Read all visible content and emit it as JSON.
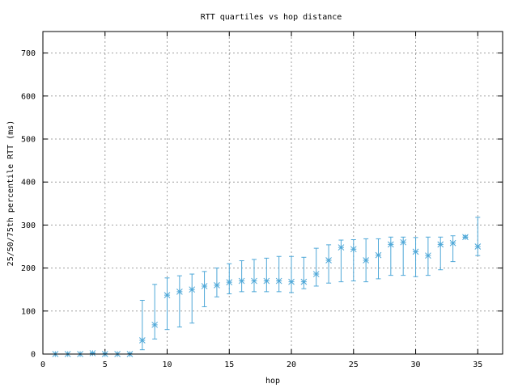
{
  "chart_data": {
    "type": "scatter",
    "title": "RTT quartiles vs hop distance",
    "xlabel": "hop",
    "ylabel": "25/50/75th percentile RTT (ms)",
    "xlim": [
      0,
      37
    ],
    "ylim": [
      0,
      750
    ],
    "x_ticks": [
      0,
      5,
      10,
      15,
      20,
      25,
      30,
      35
    ],
    "y_ticks": [
      0,
      100,
      200,
      300,
      400,
      500,
      600,
      700
    ],
    "grid": true,
    "legend": "none",
    "color": "#4fa8d8",
    "points": [
      {
        "x": 1,
        "p25": 0,
        "median": 0,
        "p75": 0
      },
      {
        "x": 2,
        "p25": 0,
        "median": 0,
        "p75": 0
      },
      {
        "x": 3,
        "p25": 0,
        "median": 0,
        "p75": 0
      },
      {
        "x": 4,
        "p25": 1,
        "median": 2,
        "p75": 3
      },
      {
        "x": 5,
        "p25": 0,
        "median": 0,
        "p75": 1
      },
      {
        "x": 6,
        "p25": 0,
        "median": 0,
        "p75": 0
      },
      {
        "x": 7,
        "p25": 0,
        "median": 0,
        "p75": 1
      },
      {
        "x": 8,
        "p25": 10,
        "median": 32,
        "p75": 125
      },
      {
        "x": 9,
        "p25": 35,
        "median": 68,
        "p75": 162
      },
      {
        "x": 10,
        "p25": 57,
        "median": 137,
        "p75": 177
      },
      {
        "x": 11,
        "p25": 63,
        "median": 145,
        "p75": 182
      },
      {
        "x": 12,
        "p25": 72,
        "median": 150,
        "p75": 186
      },
      {
        "x": 13,
        "p25": 110,
        "median": 158,
        "p75": 192
      },
      {
        "x": 14,
        "p25": 133,
        "median": 160,
        "p75": 200
      },
      {
        "x": 15,
        "p25": 140,
        "median": 167,
        "p75": 210
      },
      {
        "x": 16,
        "p25": 145,
        "median": 170,
        "p75": 217
      },
      {
        "x": 17,
        "p25": 145,
        "median": 170,
        "p75": 220
      },
      {
        "x": 18,
        "p25": 145,
        "median": 170,
        "p75": 223
      },
      {
        "x": 19,
        "p25": 145,
        "median": 170,
        "p75": 227
      },
      {
        "x": 20,
        "p25": 143,
        "median": 168,
        "p75": 227
      },
      {
        "x": 21,
        "p25": 152,
        "median": 168,
        "p75": 225
      },
      {
        "x": 22,
        "p25": 158,
        "median": 186,
        "p75": 246
      },
      {
        "x": 23,
        "p25": 165,
        "median": 218,
        "p75": 254
      },
      {
        "x": 24,
        "p25": 168,
        "median": 248,
        "p75": 265
      },
      {
        "x": 25,
        "p25": 170,
        "median": 244,
        "p75": 266
      },
      {
        "x": 26,
        "p25": 168,
        "median": 218,
        "p75": 268
      },
      {
        "x": 27,
        "p25": 175,
        "median": 230,
        "p75": 268
      },
      {
        "x": 28,
        "p25": 183,
        "median": 255,
        "p75": 272
      },
      {
        "x": 29,
        "p25": 183,
        "median": 260,
        "p75": 272
      },
      {
        "x": 30,
        "p25": 180,
        "median": 238,
        "p75": 271
      },
      {
        "x": 31,
        "p25": 183,
        "median": 229,
        "p75": 272
      },
      {
        "x": 32,
        "p25": 196,
        "median": 255,
        "p75": 272
      },
      {
        "x": 33,
        "p25": 215,
        "median": 258,
        "p75": 275
      },
      {
        "x": 34,
        "p25": 270,
        "median": 272,
        "p75": 275
      },
      {
        "x": 35,
        "p25": 229,
        "median": 250,
        "p75": 318
      }
    ]
  }
}
